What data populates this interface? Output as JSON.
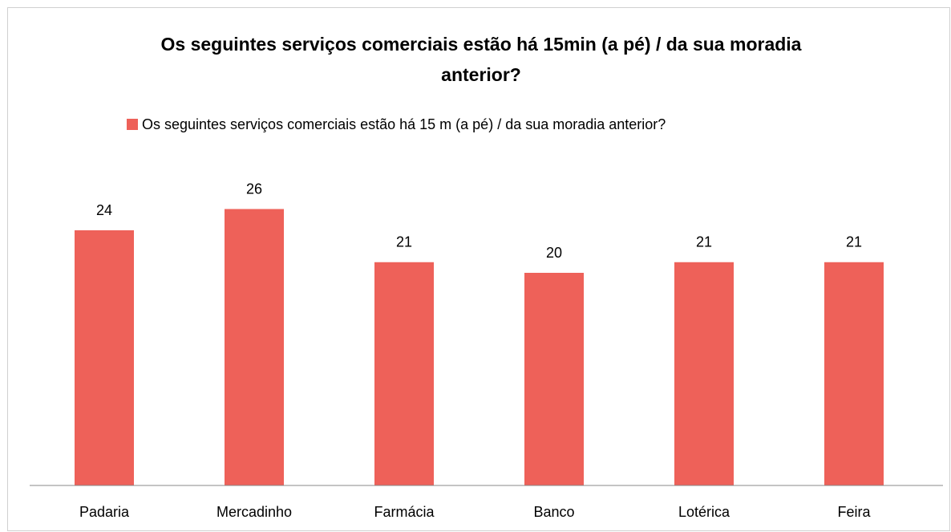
{
  "chart_data": {
    "type": "bar",
    "title": "Os seguintes serviços comerciais estão há 15min (a pé) / da sua moradia anterior?",
    "categories": [
      "Padaria",
      "Mercadinho",
      "Farmácia",
      "Banco",
      "Lotérica",
      "Feira"
    ],
    "series": [
      {
        "name": "Os seguintes serviços comerciais estão há 15 m (a pé) / da sua moradia anterior?",
        "color": "#ee6159",
        "values": [
          24,
          26,
          21,
          20,
          21,
          21
        ]
      }
    ],
    "ylim": [
      0,
      30
    ],
    "legend": "top"
  }
}
